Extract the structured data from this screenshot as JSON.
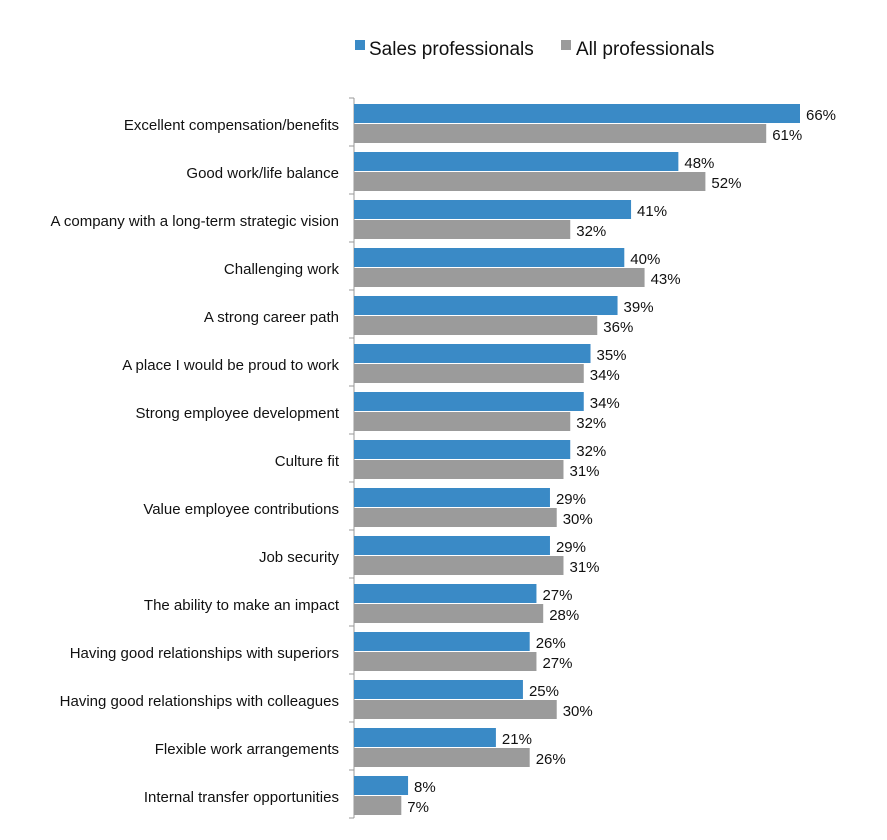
{
  "chart_data": {
    "type": "bar",
    "orientation": "horizontal",
    "title": "",
    "xlabel": "",
    "ylabel": "",
    "xlim": [
      0,
      70
    ],
    "grid": false,
    "legend_position": "top",
    "value_suffix": "%",
    "categories": [
      "Excellent compensation/benefits",
      "Good work/life balance",
      "A company with a long-term strategic vision",
      "Challenging work",
      "A strong career path",
      "A place I would be proud to work",
      "Strong employee development",
      "Culture fit",
      "Value employee contributions",
      "Job security",
      "The ability to make an impact",
      "Having good relationships with superiors",
      "Having good relationships with colleagues",
      "Flexible work arrangements",
      "Internal transfer opportunities"
    ],
    "series": [
      {
        "name": "Sales professionals",
        "color": "#3a8ac6",
        "values": [
          66,
          48,
          41,
          40,
          39,
          35,
          34,
          32,
          29,
          29,
          27,
          26,
          25,
          21,
          8
        ]
      },
      {
        "name": "All professionals",
        "color": "#9b9b9b",
        "values": [
          61,
          52,
          32,
          43,
          36,
          34,
          32,
          31,
          30,
          31,
          28,
          27,
          30,
          26,
          7
        ]
      }
    ]
  }
}
